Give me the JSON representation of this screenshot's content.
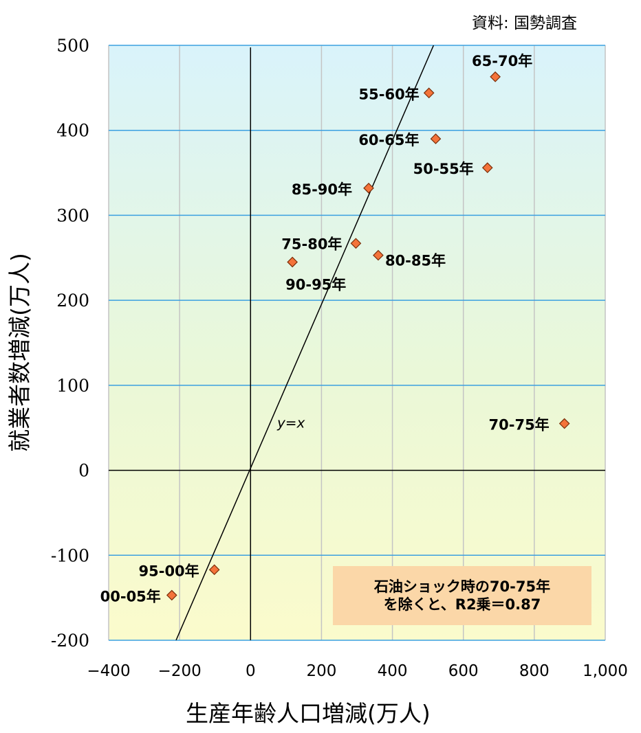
{
  "source": "資料: 国勢調査",
  "note": {
    "line1": "石油ショック時の70-75年",
    "line2": "を除くと、R2乗＝0.87"
  },
  "chart_data": {
    "type": "scatter",
    "xlabel": "生産年齢人口増減(万人)",
    "ylabel": "就業者数増減(万人)",
    "xlim": [
      -400,
      1000
    ],
    "ylim": [
      -200,
      500
    ],
    "x_ticks": [
      "−400",
      "−200",
      "0",
      "200",
      "400",
      "600",
      "800",
      "1,000"
    ],
    "y_ticks": [
      "500",
      "400",
      "300",
      "200",
      "100",
      "0",
      "-100",
      "-200"
    ],
    "grid": true,
    "reference_line": {
      "label": "y=x"
    },
    "points": [
      {
        "label": "65-70年",
        "x": 690,
        "y": 463
      },
      {
        "label": "55-60年",
        "x": 503,
        "y": 444
      },
      {
        "label": "60-65年",
        "x": 522,
        "y": 390
      },
      {
        "label": "50-55年",
        "x": 668,
        "y": 356
      },
      {
        "label": "85-90年",
        "x": 333,
        "y": 332
      },
      {
        "label": "75-80年",
        "x": 297,
        "y": 267
      },
      {
        "label": "80-85年",
        "x": 360,
        "y": 253
      },
      {
        "label": "90-95年",
        "x": 118,
        "y": 245
      },
      {
        "label": "70-75年",
        "x": 885,
        "y": 55
      },
      {
        "label": "95-00年",
        "x": -102,
        "y": -117
      },
      {
        "label": "00-05年",
        "x": -222,
        "y": -147
      }
    ],
    "colors": {
      "marker": "#f4733a",
      "marker_edge": "#7a2e0a",
      "grid": "#c4c4c4",
      "hgrid": "#3aa0e0",
      "note_bg": "#fbd7a8"
    }
  }
}
